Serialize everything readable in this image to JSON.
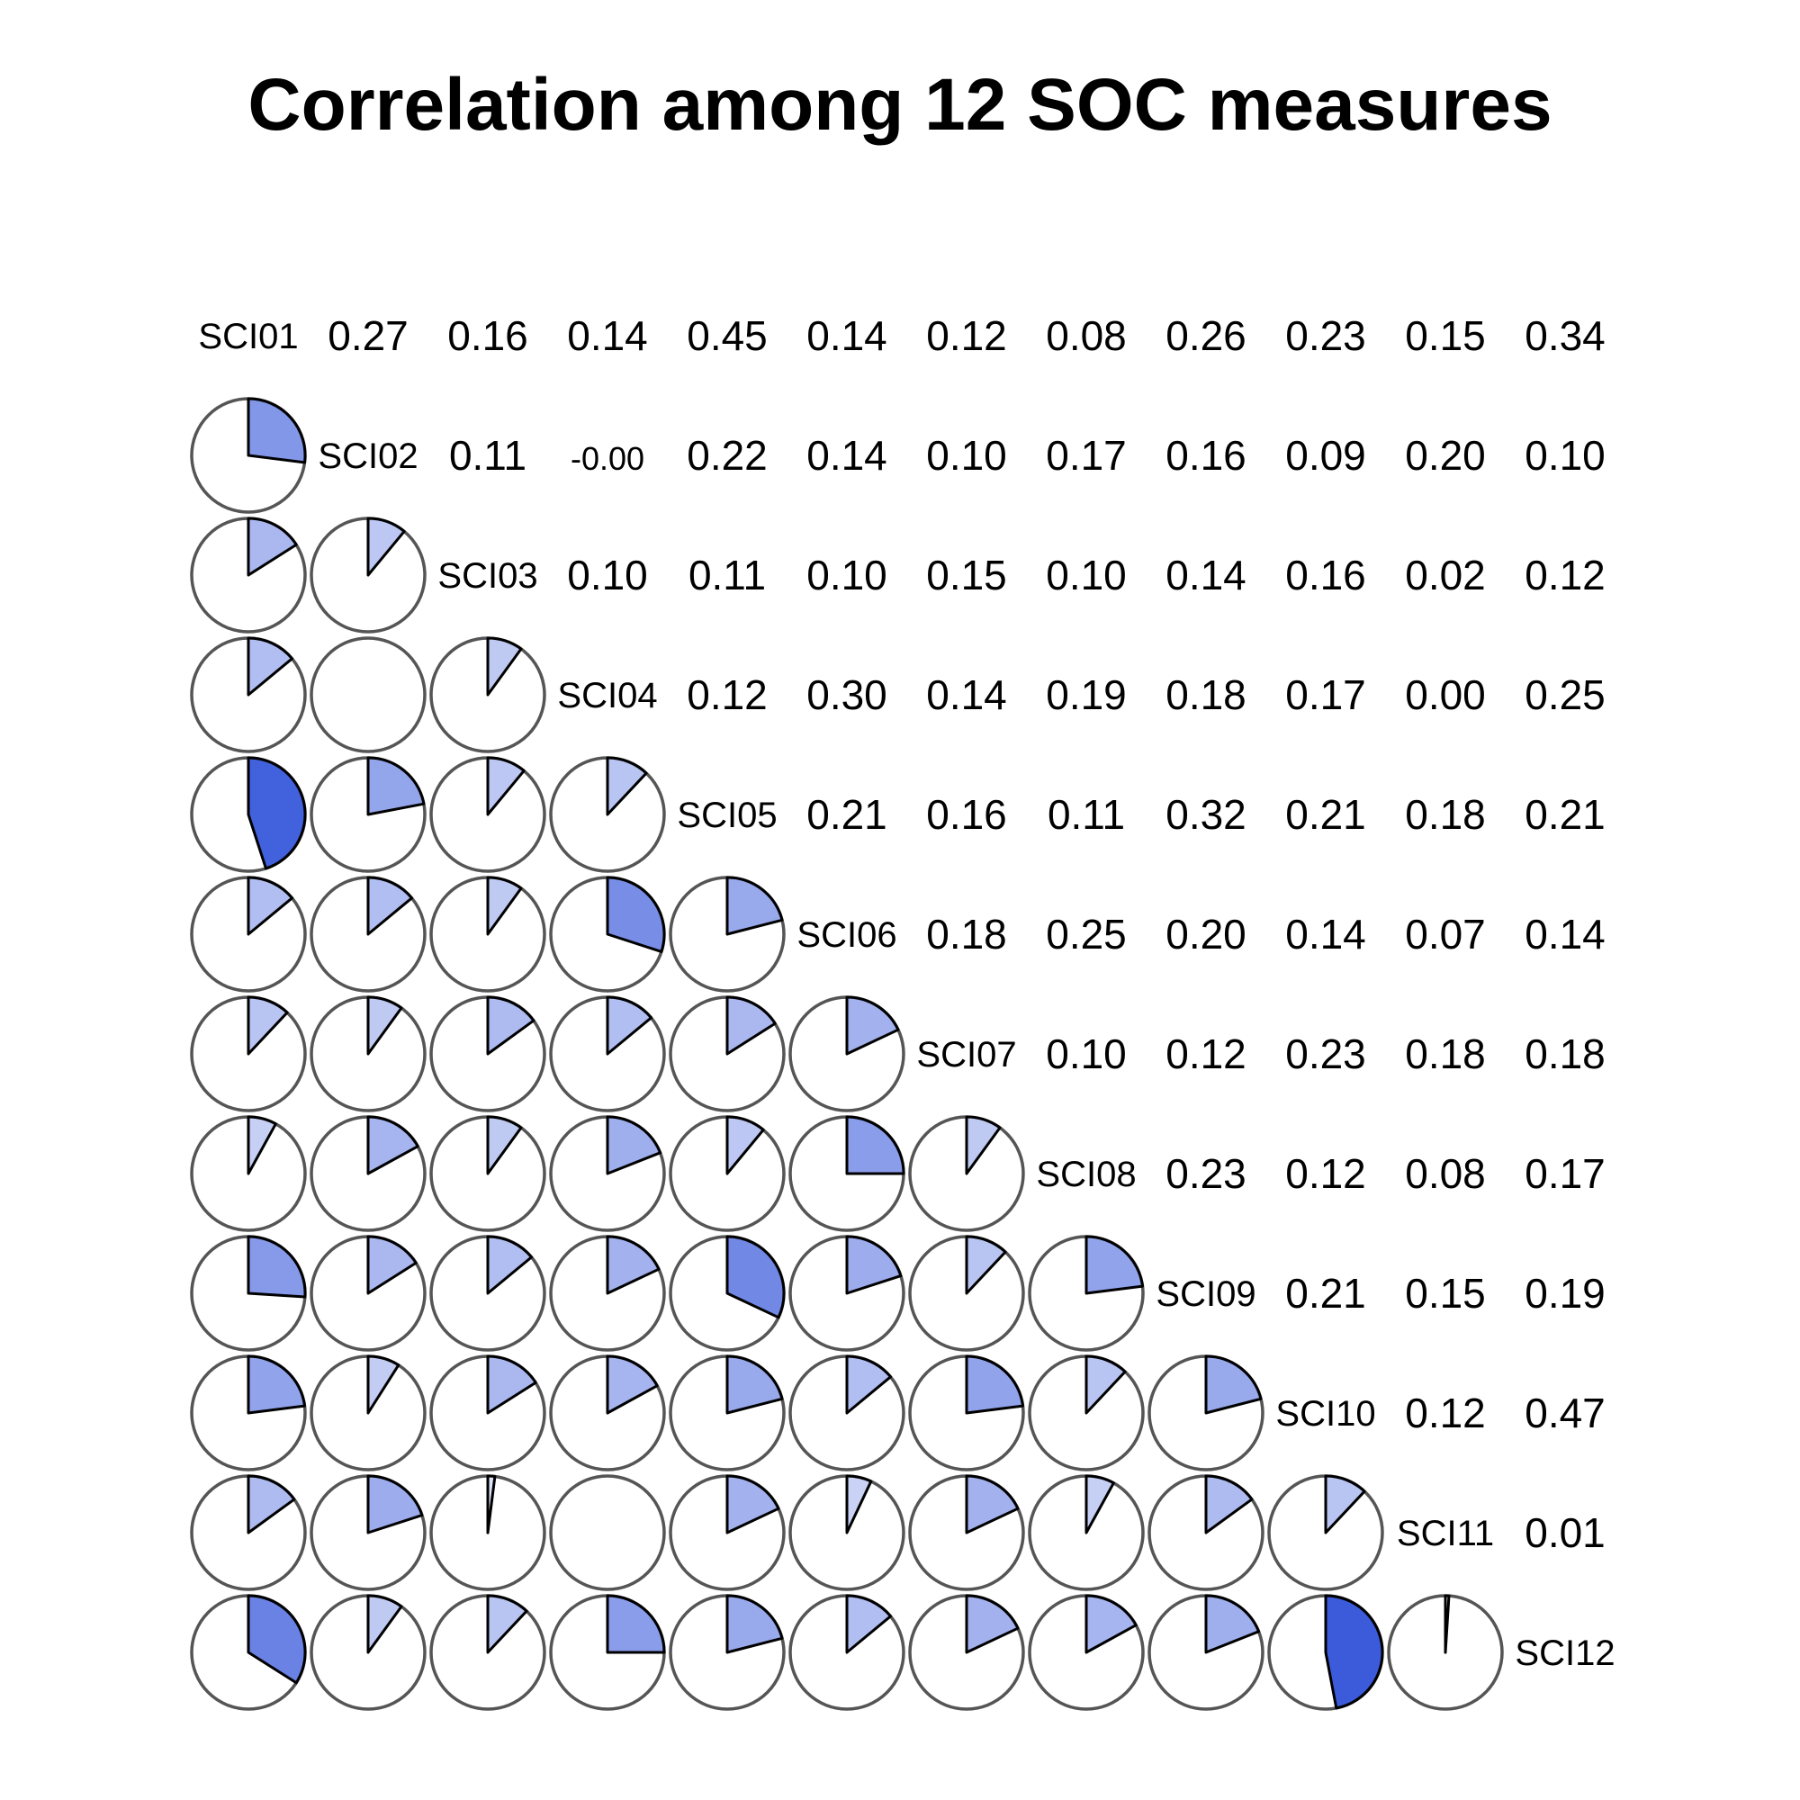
{
  "title": "Correlation among 12 SOC measures",
  "chart_data": {
    "type": "corrgram",
    "title": "Correlation among 12 SOC measures",
    "variables": [
      "SCI01",
      "SCI02",
      "SCI03",
      "SCI04",
      "SCI05",
      "SCI06",
      "SCI07",
      "SCI08",
      "SCI09",
      "SCI10",
      "SCI11",
      "SCI12"
    ],
    "lower_panel": "pie",
    "upper_panel": "correlation coefficient",
    "matrix": [
      [
        1.0,
        0.27,
        0.16,
        0.14,
        0.45,
        0.14,
        0.12,
        0.08,
        0.26,
        0.23,
        0.15,
        0.34
      ],
      [
        0.27,
        1.0,
        0.11,
        -0.0,
        0.22,
        0.14,
        0.1,
        0.17,
        0.16,
        0.09,
        0.2,
        0.1
      ],
      [
        0.16,
        0.11,
        1.0,
        0.1,
        0.11,
        0.1,
        0.15,
        0.1,
        0.14,
        0.16,
        0.02,
        0.12
      ],
      [
        0.14,
        -0.0,
        0.1,
        1.0,
        0.12,
        0.3,
        0.14,
        0.19,
        0.18,
        0.17,
        0.0,
        0.25
      ],
      [
        0.45,
        0.22,
        0.11,
        0.12,
        1.0,
        0.21,
        0.16,
        0.11,
        0.32,
        0.21,
        0.18,
        0.21
      ],
      [
        0.14,
        0.14,
        0.1,
        0.3,
        0.21,
        1.0,
        0.18,
        0.25,
        0.2,
        0.14,
        0.07,
        0.14
      ],
      [
        0.12,
        0.1,
        0.15,
        0.14,
        0.16,
        0.18,
        1.0,
        0.1,
        0.12,
        0.23,
        0.18,
        0.18
      ],
      [
        0.08,
        0.17,
        0.1,
        0.19,
        0.11,
        0.25,
        0.1,
        1.0,
        0.23,
        0.12,
        0.08,
        0.17
      ],
      [
        0.26,
        0.16,
        0.14,
        0.18,
        0.32,
        0.2,
        0.12,
        0.23,
        1.0,
        0.21,
        0.15,
        0.19
      ],
      [
        0.23,
        0.09,
        0.16,
        0.17,
        0.21,
        0.14,
        0.23,
        0.12,
        0.21,
        1.0,
        0.12,
        0.47
      ],
      [
        0.15,
        0.2,
        0.02,
        0.0,
        0.18,
        0.07,
        0.18,
        0.08,
        0.15,
        0.12,
        1.0,
        0.01
      ],
      [
        0.34,
        0.1,
        0.12,
        0.25,
        0.21,
        0.14,
        0.18,
        0.17,
        0.19,
        0.47,
        0.01,
        1.0
      ]
    ],
    "upper_labels": [
      [
        "0.27",
        "0.16",
        "0.14",
        "0.45",
        "0.14",
        "0.12",
        "0.08",
        "0.26",
        "0.23",
        "0.15",
        "0.34"
      ],
      [
        "0.11",
        "-0.00",
        "0.22",
        "0.14",
        "0.10",
        "0.17",
        "0.16",
        "0.09",
        "0.20",
        "0.10"
      ],
      [
        "0.10",
        "0.11",
        "0.10",
        "0.15",
        "0.10",
        "0.14",
        "0.16",
        "0.02",
        "0.12"
      ],
      [
        "0.12",
        "0.30",
        "0.14",
        "0.19",
        "0.18",
        "0.17",
        "0.00",
        "0.25"
      ],
      [
        "0.21",
        "0.16",
        "0.11",
        "0.32",
        "0.21",
        "0.18",
        "0.21"
      ],
      [
        "0.18",
        "0.25",
        "0.20",
        "0.14",
        "0.07",
        "0.14"
      ],
      [
        "0.10",
        "0.12",
        "0.23",
        "0.18",
        "0.18"
      ],
      [
        "0.23",
        "0.12",
        "0.08",
        "0.17"
      ],
      [
        "0.21",
        "0.15",
        "0.19"
      ],
      [
        "0.12",
        "0.47"
      ],
      [
        "0.01"
      ]
    ],
    "colors": {
      "fill_low": "#e3e8fa",
      "fill_high": "#3b5bdb",
      "circle_stroke": "#555555",
      "wedge_stroke": "#000000",
      "background": "#ffffff"
    }
  }
}
